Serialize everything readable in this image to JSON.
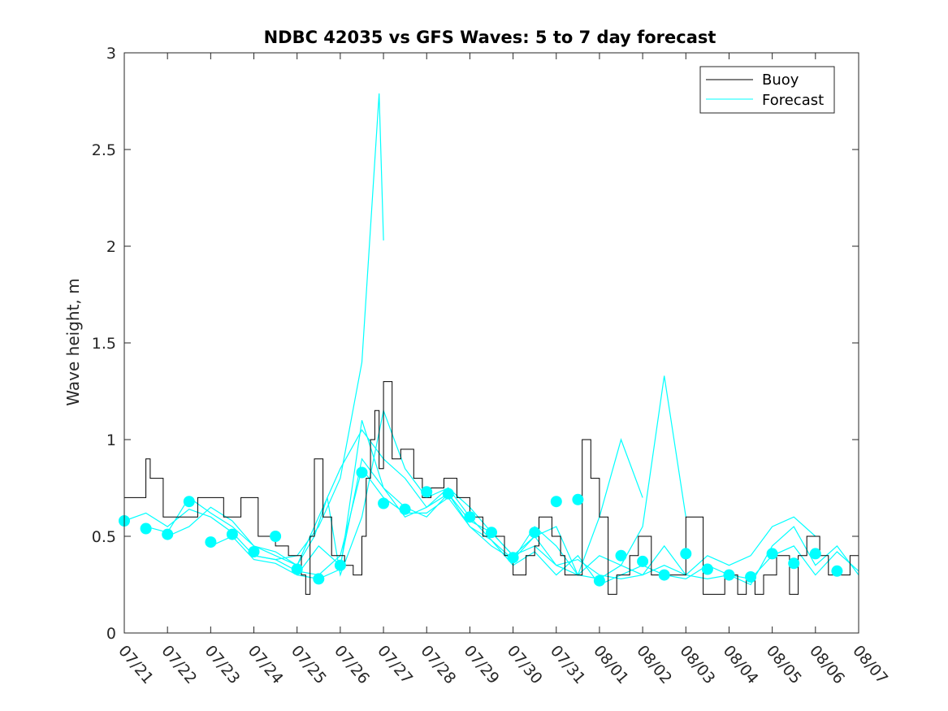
{
  "chart_data": {
    "type": "line",
    "title": "NDBC 42035 vs GFS Waves: 5 to 7 day forecast",
    "xlabel": "",
    "ylabel": "Wave height, m",
    "xlim": [
      "07/21",
      "08/07"
    ],
    "ylim": [
      0,
      3
    ],
    "x_ticks": [
      "07/21",
      "07/22",
      "07/23",
      "07/24",
      "07/25",
      "07/26",
      "07/27",
      "07/28",
      "07/29",
      "07/30",
      "07/31",
      "08/01",
      "08/02",
      "08/03",
      "08/04",
      "08/05",
      "08/06",
      "08/07"
    ],
    "y_ticks": [
      "0",
      "0.5",
      "1",
      "1.5",
      "2",
      "2.5",
      "3"
    ],
    "grid": false,
    "legend_position": "top-right",
    "legend": [
      "Buoy",
      "Forecast"
    ],
    "colors": {
      "buoy": "#000000",
      "forecast": "#00ffff"
    },
    "buoy": {
      "name": "Buoy",
      "x": [
        "07/21 00:00",
        "07/21 12:00",
        "07/21 12:00",
        "07/21 14:24",
        "07/21 21:36",
        "07/22 07:12",
        "07/22 16:48",
        "07/23 07:12",
        "07/23 16:48",
        "07/24 02:24",
        "07/24 12:00",
        "07/24 19:12",
        "07/25 00:00",
        "07/25 02:24",
        "07/25 04:48",
        "07/25 07:12",
        "07/25 09:36",
        "07/25 14:24",
        "07/25 19:12",
        "07/26 02:24",
        "07/26 07:12",
        "07/26 12:00",
        "07/26 14:24",
        "07/26 16:48",
        "07/26 19:12",
        "07/26 21:36",
        "07/27 00:00",
        "07/27 04:48",
        "07/27 09:36",
        "07/27 16:48",
        "07/27 21:36",
        "07/28 02:24",
        "07/28 09:36",
        "07/28 16:48",
        "07/29 00:00",
        "07/29 07:12",
        "07/29 14:24",
        "07/29 19:12",
        "07/30 00:00",
        "07/30 04:48",
        "07/30 07:12",
        "07/30 12:00",
        "07/30 14:24",
        "07/30 21:36",
        "07/31 02:24",
        "07/31 04:48",
        "07/31 07:12",
        "07/31 09:36",
        "07/31 14:24",
        "07/31 19:12",
        "08/01 00:00",
        "08/01 04:48",
        "08/01 09:36",
        "08/01 14:24",
        "08/01 16:48",
        "08/01 21:36",
        "08/02 04:48",
        "08/02 12:00",
        "08/02 19:12",
        "08/03 00:00",
        "08/03 09:36",
        "08/03 16:48",
        "08/03 21:36",
        "08/04 04:48",
        "08/04 09:36",
        "08/04 14:24",
        "08/04 19:12",
        "08/05 02:24",
        "08/05 09:36",
        "08/05 14:24",
        "08/05 19:12",
        "08/06 02:24",
        "08/06 07:12",
        "08/06 12:00",
        "08/06 19:12",
        "08/07 00:00"
      ],
      "y": [
        0.7,
        0.7,
        0.9,
        0.8,
        0.6,
        0.6,
        0.7,
        0.6,
        0.7,
        0.5,
        0.45,
        0.4,
        0.4,
        0.3,
        0.2,
        0.5,
        0.9,
        0.6,
        0.4,
        0.35,
        0.3,
        0.5,
        0.8,
        1.0,
        1.15,
        0.85,
        1.3,
        0.9,
        0.95,
        0.8,
        0.7,
        0.75,
        0.8,
        0.7,
        0.6,
        0.5,
        0.5,
        0.4,
        0.3,
        0.3,
        0.4,
        0.45,
        0.6,
        0.5,
        0.4,
        0.3,
        0.3,
        0.3,
        1.0,
        0.8,
        0.6,
        0.2,
        0.3,
        0.3,
        0.4,
        0.5,
        0.3,
        0.3,
        0.3,
        0.6,
        0.2,
        0.2,
        0.3,
        0.2,
        0.3,
        0.2,
        0.3,
        0.4,
        0.2,
        0.4,
        0.5,
        0.4,
        0.3,
        0.3,
        0.4,
        0.3
      ]
    },
    "forecast_runs": [
      {
        "name": "Forecast",
        "x": [
          "07/21 00:00",
          "07/21 12:00",
          "07/22 00:00",
          "07/22 12:00",
          "07/23 00:00",
          "07/23 12:00",
          "07/24 00:00",
          "07/24 12:00",
          "07/25 00:00",
          "07/25 12:00",
          "07/26 00:00",
          "07/26 12:00",
          "07/26 21:36",
          "07/27 00:00"
        ],
        "y": [
          0.58,
          0.62,
          0.55,
          0.64,
          0.6,
          0.52,
          0.4,
          0.38,
          0.4,
          0.55,
          0.8,
          1.4,
          2.79,
          2.03
        ]
      },
      {
        "name": "Forecast",
        "x": [
          "07/21 12:00",
          "07/22 00:00",
          "07/22 12:00",
          "07/23 00:00",
          "07/23 12:00",
          "07/24 00:00",
          "07/24 12:00",
          "07/25 00:00",
          "07/25 09:36",
          "07/25 16:48",
          "07/26 00:00",
          "07/26 12:00",
          "07/27 00:00",
          "07/27 12:00",
          "07/28 00:00",
          "07/28 12:00",
          "07/29 00:00",
          "07/29 12:00",
          "07/30 00:00",
          "07/30 12:00",
          "07/31 00:00",
          "07/31 12:00",
          "08/01 00:00",
          "08/01 12:00",
          "08/02 00:00"
        ],
        "y": [
          0.55,
          0.52,
          0.7,
          0.62,
          0.55,
          0.45,
          0.4,
          0.35,
          0.5,
          0.7,
          0.3,
          0.6,
          1.15,
          0.85,
          0.7,
          0.75,
          0.65,
          0.52,
          0.4,
          0.5,
          0.55,
          0.3,
          0.6,
          1.0,
          0.7
        ]
      },
      {
        "name": "Forecast",
        "x": [
          "07/22 00:00",
          "07/22 12:00",
          "07/23 00:00",
          "07/23 12:00",
          "07/24 00:00",
          "07/24 12:00",
          "07/25 00:00",
          "07/25 12:00",
          "07/26 00:00",
          "07/26 12:00",
          "07/27 00:00",
          "07/27 12:00",
          "07/28 00:00",
          "07/28 12:00",
          "07/29 00:00",
          "07/29 12:00",
          "07/30 00:00",
          "07/30 12:00",
          "07/31 00:00",
          "07/31 12:00",
          "08/01 00:00",
          "08/01 12:00",
          "08/02 00:00",
          "08/02 12:00",
          "08/03 00:00"
        ],
        "y": [
          0.5,
          0.55,
          0.65,
          0.58,
          0.45,
          0.42,
          0.35,
          0.6,
          0.85,
          1.05,
          0.9,
          0.8,
          0.65,
          0.75,
          0.6,
          0.48,
          0.38,
          0.55,
          0.45,
          0.3,
          0.4,
          0.35,
          0.55,
          1.33,
          0.6
        ]
      },
      {
        "name": "Forecast",
        "x": [
          "07/23 00:00",
          "07/23 12:00",
          "07/24 00:00",
          "07/24 12:00",
          "07/25 00:00",
          "07/25 12:00",
          "07/26 00:00",
          "07/26 12:00",
          "07/27 00:00",
          "07/27 12:00",
          "07/28 00:00",
          "07/28 12:00",
          "07/29 00:00",
          "07/29 12:00",
          "07/30 00:00",
          "07/30 12:00",
          "07/31 00:00",
          "07/31 12:00",
          "08/01 00:00",
          "08/01 12:00",
          "08/02 00:00",
          "08/02 12:00",
          "08/03 00:00",
          "08/03 12:00",
          "08/04 00:00",
          "08/04 12:00",
          "08/05 00:00",
          "08/05 12:00",
          "08/06 00:00"
        ],
        "y": [
          0.45,
          0.5,
          0.38,
          0.36,
          0.3,
          0.45,
          0.35,
          0.9,
          0.75,
          0.65,
          0.6,
          0.72,
          0.58,
          0.52,
          0.4,
          0.45,
          0.35,
          0.3,
          0.28,
          0.35,
          0.3,
          0.45,
          0.3,
          0.4,
          0.35,
          0.4,
          0.55,
          0.6,
          0.5
        ]
      },
      {
        "name": "Forecast",
        "x": [
          "07/24 00:00",
          "07/24 12:00",
          "07/25 00:00",
          "07/25 12:00",
          "07/26 00:00",
          "07/26 12:00",
          "07/27 00:00",
          "07/27 12:00",
          "07/28 00:00",
          "07/28 12:00",
          "07/29 00:00",
          "07/29 12:00",
          "07/30 00:00",
          "07/30 12:00",
          "07/31 00:00",
          "07/31 12:00",
          "08/01 00:00",
          "08/01 12:00",
          "08/02 00:00",
          "08/02 12:00",
          "08/03 00:00",
          "08/03 12:00",
          "08/04 00:00",
          "08/04 12:00",
          "08/05 00:00",
          "08/05 12:00",
          "08/06 00:00",
          "08/06 12:00",
          "08/07 00:00"
        ],
        "y": [
          0.4,
          0.38,
          0.32,
          0.3,
          0.4,
          0.85,
          0.7,
          0.62,
          0.62,
          0.7,
          0.55,
          0.48,
          0.35,
          0.42,
          0.3,
          0.4,
          0.25,
          0.3,
          0.35,
          0.3,
          0.28,
          0.35,
          0.3,
          0.28,
          0.4,
          0.45,
          0.3,
          0.42,
          0.32
        ]
      },
      {
        "name": "Forecast",
        "x": [
          "07/25 00:00",
          "07/25 12:00",
          "07/26 00:00",
          "07/26 12:00",
          "07/27 00:00",
          "07/27 12:00",
          "07/28 00:00",
          "07/28 12:00",
          "07/29 00:00",
          "07/29 12:00",
          "07/30 00:00",
          "07/30 12:00",
          "07/31 00:00",
          "07/31 12:00",
          "08/01 00:00",
          "08/01 12:00",
          "08/02 00:00",
          "08/02 12:00",
          "08/03 00:00",
          "08/03 12:00",
          "08/04 00:00",
          "08/04 12:00",
          "08/05 00:00",
          "08/05 12:00",
          "08/06 00:00",
          "08/06 12:00",
          "08/07 00:00"
        ],
        "y": [
          0.3,
          0.28,
          0.33,
          1.1,
          0.75,
          0.6,
          0.65,
          0.72,
          0.55,
          0.45,
          0.38,
          0.5,
          0.35,
          0.38,
          0.3,
          0.28,
          0.3,
          0.35,
          0.3,
          0.28,
          0.3,
          0.25,
          0.45,
          0.55,
          0.35,
          0.45,
          0.3
        ]
      }
    ],
    "forecast_markers": {
      "name": "Forecast",
      "x": [
        "07/21 00:00",
        "07/21 12:00",
        "07/22 00:00",
        "07/22 12:00",
        "07/23 00:00",
        "07/23 12:00",
        "07/24 00:00",
        "07/24 12:00",
        "07/25 00:00",
        "07/25 12:00",
        "07/26 00:00",
        "07/26 12:00",
        "07/27 00:00",
        "07/27 12:00",
        "07/28 00:00",
        "07/28 12:00",
        "07/29 00:00",
        "07/29 12:00",
        "07/30 00:00",
        "07/30 12:00",
        "07/31 00:00",
        "07/31 12:00",
        "08/01 00:00",
        "08/01 12:00",
        "08/02 00:00",
        "08/02 12:00",
        "08/03 00:00",
        "08/03 12:00",
        "08/04 00:00",
        "08/04 12:00",
        "08/05 00:00",
        "08/05 12:00",
        "08/06 00:00",
        "08/06 12:00"
      ],
      "y": [
        0.58,
        0.54,
        0.51,
        0.68,
        0.47,
        0.51,
        0.42,
        0.5,
        0.33,
        0.28,
        0.35,
        0.83,
        0.67,
        0.64,
        0.73,
        0.72,
        0.6,
        0.52,
        0.39,
        0.52,
        0.68,
        0.69,
        0.27,
        0.4,
        0.37,
        0.3,
        0.41,
        0.33,
        0.3,
        0.29,
        0.41,
        0.36,
        0.41,
        0.32
      ]
    }
  }
}
